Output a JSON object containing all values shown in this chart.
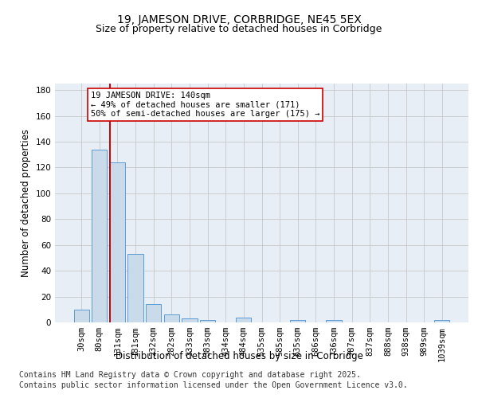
{
  "title_line1": "19, JAMESON DRIVE, CORBRIDGE, NE45 5EX",
  "title_line2": "Size of property relative to detached houses in Corbridge",
  "xlabel": "Distribution of detached houses by size in Corbridge",
  "ylabel": "Number of detached properties",
  "categories": [
    "30sqm",
    "80sqm",
    "131sqm",
    "181sqm",
    "232sqm",
    "282sqm",
    "333sqm",
    "383sqm",
    "434sqm",
    "484sqm",
    "535sqm",
    "585sqm",
    "635sqm",
    "686sqm",
    "736sqm",
    "787sqm",
    "837sqm",
    "888sqm",
    "938sqm",
    "989sqm",
    "1039sqm"
  ],
  "values": [
    10,
    134,
    124,
    53,
    14,
    6,
    3,
    2,
    0,
    4,
    0,
    0,
    2,
    0,
    2,
    0,
    0,
    0,
    0,
    0,
    2
  ],
  "bar_color": "#c9daea",
  "bar_edge_color": "#5b9bd5",
  "grid_color": "#c8c8c8",
  "red_line_x": 2,
  "annotation_text": "19 JAMESON DRIVE: 140sqm\n← 49% of detached houses are smaller (171)\n50% of semi-detached houses are larger (175) →",
  "annotation_box_color": "#ffffff",
  "annotation_box_edge": "#cc0000",
  "annotation_text_color": "#000000",
  "vline_color": "#cc0000",
  "footer_line1": "Contains HM Land Registry data © Crown copyright and database right 2025.",
  "footer_line2": "Contains public sector information licensed under the Open Government Licence v3.0.",
  "ylim": [
    0,
    185
  ],
  "yticks": [
    0,
    20,
    40,
    60,
    80,
    100,
    120,
    140,
    160,
    180
  ],
  "fig_bg_color": "#ffffff",
  "plot_bg_color": "#e8eef5",
  "title_fontsize": 10,
  "subtitle_fontsize": 9,
  "axis_label_fontsize": 8.5,
  "tick_fontsize": 7.5,
  "annotation_fontsize": 7.5,
  "footer_fontsize": 7.0
}
